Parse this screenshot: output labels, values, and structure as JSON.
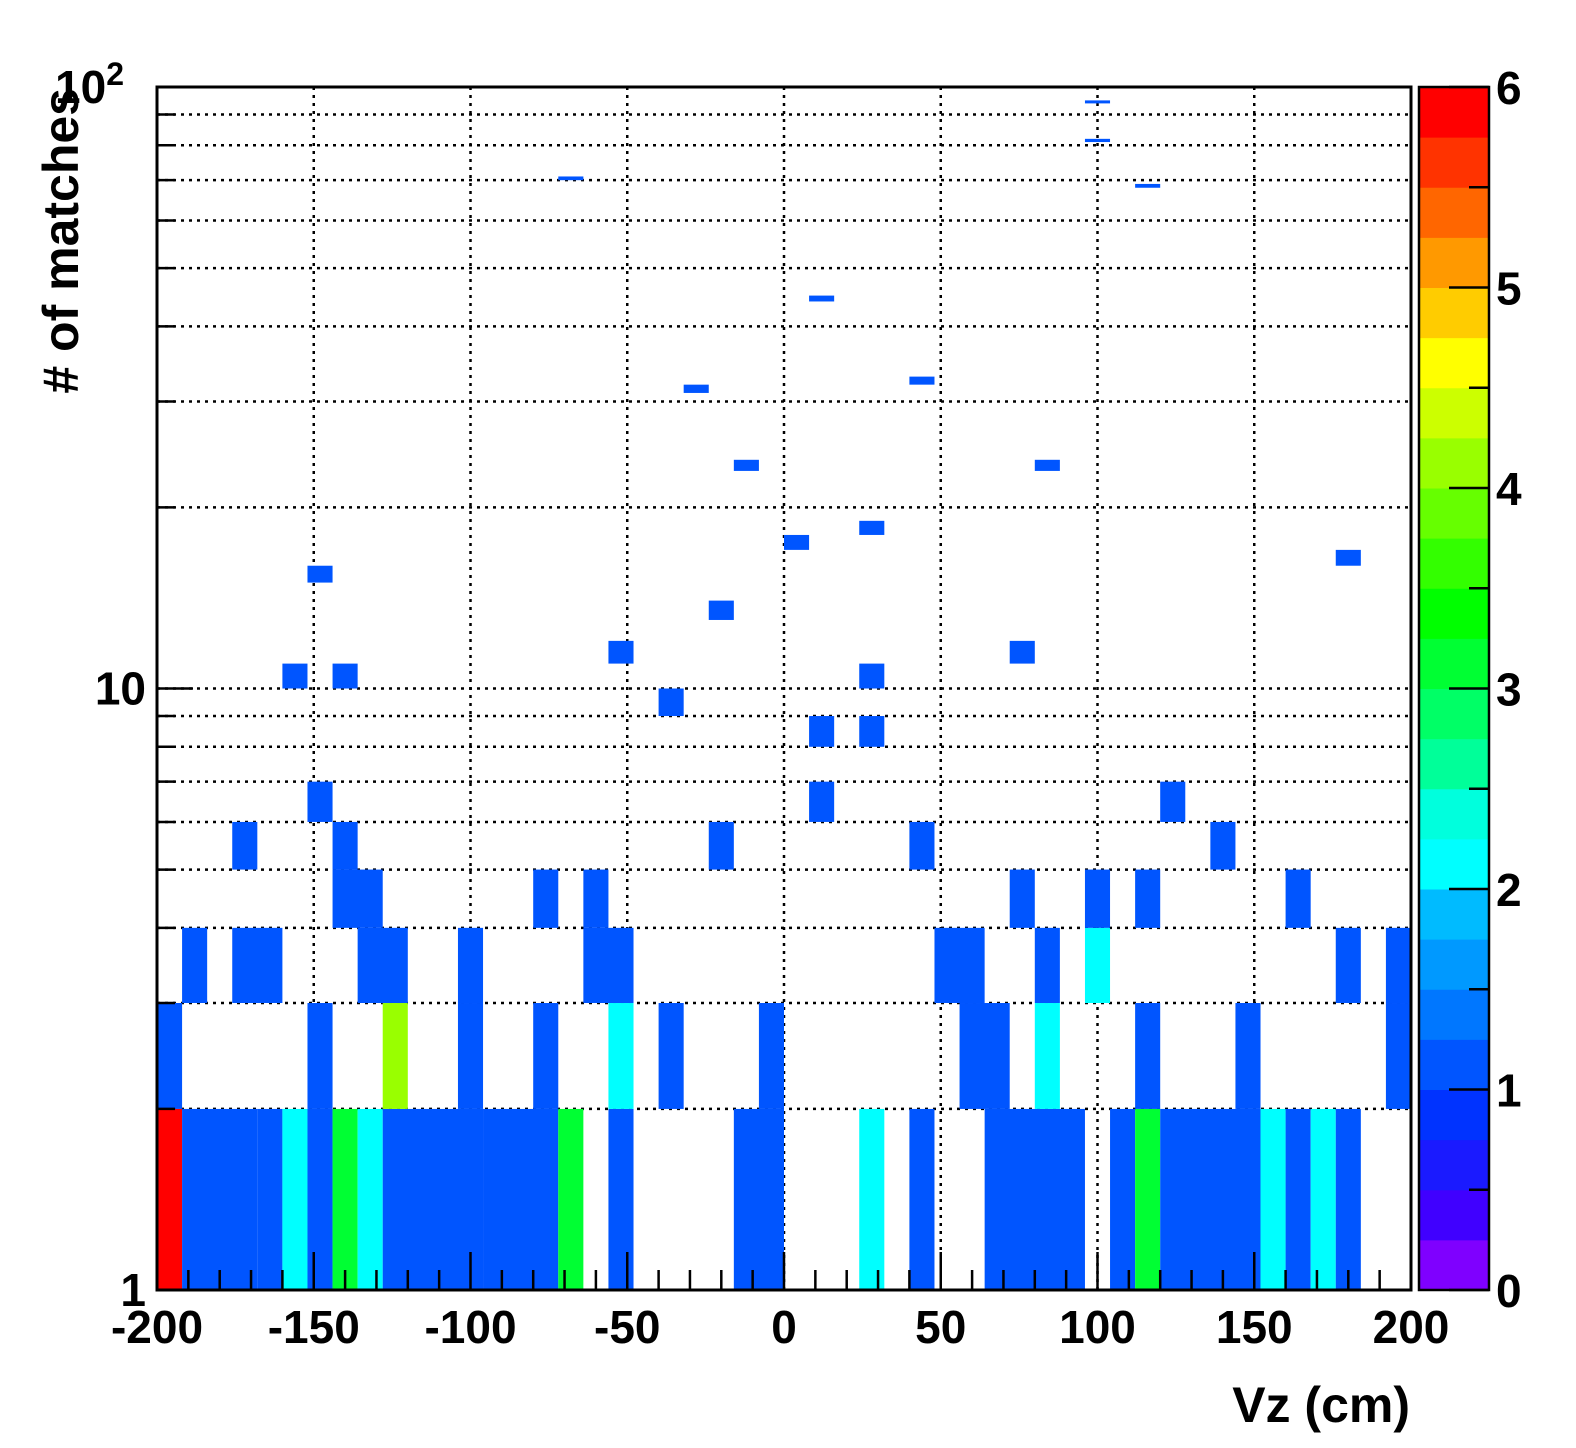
{
  "chart_data": {
    "type": "heatmap",
    "title": "",
    "xlabel": "Vz (cm)",
    "ylabel": "# of matches",
    "xlim": [
      -200,
      200
    ],
    "ylim": [
      1,
      100
    ],
    "y_scale": "log",
    "grid": true,
    "x_ticks": [
      "-200",
      "-150",
      "-100",
      "-50",
      "0",
      "50",
      "100",
      "150",
      "200"
    ],
    "y_ticks": [
      {
        "value": 1,
        "label": "1"
      },
      {
        "value": 10,
        "label": "10"
      },
      {
        "value": 100,
        "label": "10",
        "exponent": "2"
      }
    ],
    "z_range": [
      0,
      6
    ],
    "z_ticks": [
      "0",
      "1",
      "2",
      "3",
      "4",
      "5",
      "6"
    ],
    "colorbar_position": "right",
    "palette": [
      "#7f00ff",
      "#4000ff",
      "#1a1aff",
      "#0033ff",
      "#0055ff",
      "#0077ff",
      "#0099ff",
      "#00bbff",
      "#00ffff",
      "#00ffdd",
      "#00ff99",
      "#00ff66",
      "#00ff33",
      "#00ff00",
      "#33ff00",
      "#66ff00",
      "#99ff00",
      "#ccff00",
      "#ffff00",
      "#ffcc00",
      "#ff9900",
      "#ff6600",
      "#ff3300",
      "#ff0000"
    ],
    "bin_width_cm": 8,
    "cells": [
      {
        "x0": -200,
        "y0": 1,
        "y1": 2,
        "z": 6
      },
      {
        "x0": -192,
        "x1": -176,
        "y0": 1,
        "y1": 2,
        "z": 1
      },
      {
        "x0": -168,
        "y0": 1,
        "y1": 2,
        "z": 1
      },
      {
        "x0": -160,
        "y0": 1,
        "y1": 2,
        "z": 2
      },
      {
        "x0": -152,
        "y0": 1,
        "y1": 2,
        "z": 1
      },
      {
        "x0": -144,
        "y0": 1,
        "y1": 2,
        "z": 3
      },
      {
        "x0": -136,
        "y0": 1,
        "y1": 2,
        "z": 2
      },
      {
        "x0": -128,
        "x1": -104,
        "y0": 1,
        "y1": 2,
        "z": 1
      },
      {
        "x0": -96,
        "x1": -80,
        "y0": 1,
        "y1": 2,
        "z": 1
      },
      {
        "x0": -72,
        "y0": 1,
        "y1": 2,
        "z": 3
      },
      {
        "x0": -56,
        "y0": 1,
        "y1": 2,
        "z": 1
      },
      {
        "x0": -16,
        "x1": -8,
        "y0": 1,
        "y1": 2,
        "z": 1
      },
      {
        "x0": 24,
        "y0": 1,
        "y1": 2,
        "z": 2
      },
      {
        "x0": 40,
        "y0": 1,
        "y1": 2,
        "z": 1
      },
      {
        "x0": 64,
        "x1": 88,
        "y0": 1,
        "y1": 2,
        "z": 1
      },
      {
        "x0": 104,
        "y0": 1,
        "y1": 2,
        "z": 1
      },
      {
        "x0": 112,
        "y0": 1,
        "y1": 2,
        "z": 3
      },
      {
        "x0": 120,
        "x1": 144,
        "y0": 1,
        "y1": 2,
        "z": 1
      },
      {
        "x0": 152,
        "y0": 1,
        "y1": 2,
        "z": 2
      },
      {
        "x0": 160,
        "y0": 1,
        "y1": 2,
        "z": 1
      },
      {
        "x0": 168,
        "y0": 1,
        "y1": 2,
        "z": 2
      },
      {
        "x0": 176,
        "y0": 1,
        "y1": 2,
        "z": 1
      },
      {
        "x0": -200,
        "y0": 2,
        "y1": 3,
        "z": 1
      },
      {
        "x0": -152,
        "y0": 2,
        "y1": 3,
        "z": 1
      },
      {
        "x0": -128,
        "y0": 2,
        "y1": 3,
        "z": 4
      },
      {
        "x0": -104,
        "y0": 2,
        "y1": 3,
        "z": 1
      },
      {
        "x0": -80,
        "y0": 2,
        "y1": 3,
        "z": 1
      },
      {
        "x0": -56,
        "y0": 2,
        "y1": 3,
        "z": 2
      },
      {
        "x0": -40,
        "y0": 2,
        "y1": 3,
        "z": 1
      },
      {
        "x0": -8,
        "y0": 2,
        "y1": 3,
        "z": 1
      },
      {
        "x0": 56,
        "x1": 64,
        "y0": 2,
        "y1": 3,
        "z": 1
      },
      {
        "x0": 80,
        "y0": 2,
        "y1": 3,
        "z": 2
      },
      {
        "x0": 112,
        "y0": 2,
        "y1": 3,
        "z": 1
      },
      {
        "x0": 144,
        "y0": 2,
        "y1": 3,
        "z": 1
      },
      {
        "x0": 192,
        "y0": 2,
        "y1": 3,
        "z": 1
      },
      {
        "x0": -192,
        "y0": 3,
        "y1": 4,
        "z": 1
      },
      {
        "x0": -176,
        "x1": -168,
        "y0": 3,
        "y1": 4,
        "z": 1
      },
      {
        "x0": -136,
        "x1": -128,
        "y0": 3,
        "y1": 4,
        "z": 1
      },
      {
        "x0": -104,
        "y0": 3,
        "y1": 4,
        "z": 1
      },
      {
        "x0": -64,
        "x1": -56,
        "y0": 3,
        "y1": 4,
        "z": 1
      },
      {
        "x0": 48,
        "x1": 56,
        "y0": 3,
        "y1": 4,
        "z": 1
      },
      {
        "x0": 80,
        "y0": 3,
        "y1": 4,
        "z": 1
      },
      {
        "x0": 96,
        "y0": 3,
        "y1": 4,
        "z": 2
      },
      {
        "x0": 176,
        "y0": 3,
        "y1": 4,
        "z": 1
      },
      {
        "x0": 192,
        "y0": 3,
        "y1": 4,
        "z": 1
      },
      {
        "x0": -144,
        "x1": -136,
        "y0": 4,
        "y1": 5,
        "z": 1
      },
      {
        "x0": -80,
        "y0": 4,
        "y1": 5,
        "z": 1
      },
      {
        "x0": -64,
        "y0": 4,
        "y1": 5,
        "z": 1
      },
      {
        "x0": 72,
        "y0": 4,
        "y1": 5,
        "z": 1
      },
      {
        "x0": 96,
        "y0": 4,
        "y1": 5,
        "z": 1
      },
      {
        "x0": 112,
        "y0": 4,
        "y1": 5,
        "z": 1
      },
      {
        "x0": 160,
        "y0": 4,
        "y1": 5,
        "z": 1
      },
      {
        "x0": -176,
        "y0": 5,
        "y1": 6,
        "z": 1
      },
      {
        "x0": -144,
        "y0": 5,
        "y1": 6,
        "z": 1
      },
      {
        "x0": -24,
        "y0": 5,
        "y1": 6,
        "z": 1
      },
      {
        "x0": 40,
        "y0": 5,
        "y1": 6,
        "z": 1
      },
      {
        "x0": 136,
        "y0": 5,
        "y1": 6,
        "z": 1
      },
      {
        "x0": -152,
        "y0": 6,
        "y1": 7,
        "z": 1
      },
      {
        "x0": 8,
        "y0": 6,
        "y1": 7,
        "z": 1
      },
      {
        "x0": 120,
        "y0": 6,
        "y1": 7,
        "z": 1
      },
      {
        "x0": 8,
        "y0": 8,
        "y1": 9,
        "z": 1
      },
      {
        "x0": 24,
        "y0": 8,
        "y1": 9,
        "z": 1
      },
      {
        "x0": -40,
        "y0": 9,
        "y1": 10,
        "z": 1
      },
      {
        "x0": -160,
        "y0": 10,
        "y1": 11,
        "z": 1
      },
      {
        "x0": -144,
        "y0": 10,
        "y1": 11,
        "z": 1
      },
      {
        "x0": 24,
        "y0": 10,
        "y1": 11,
        "z": 1
      },
      {
        "x0": -56,
        "y0": 11,
        "y1": 12,
        "z": 1
      },
      {
        "x0": 72,
        "y0": 11,
        "y1": 12,
        "z": 1
      },
      {
        "x0": -24,
        "y0": 13,
        "y1": 14,
        "z": 1
      },
      {
        "x0": -152,
        "y0": 15,
        "y1": 16,
        "z": 1
      },
      {
        "x0": 176,
        "y0": 16,
        "y1": 17,
        "z": 1
      },
      {
        "x0": 0,
        "y0": 17,
        "y1": 18,
        "z": 1
      },
      {
        "x0": 24,
        "y0": 18,
        "y1": 19,
        "z": 1
      },
      {
        "x0": -16,
        "y0": 23,
        "y1": 24,
        "z": 1
      },
      {
        "x0": 80,
        "y0": 23,
        "y1": 24,
        "z": 1
      },
      {
        "x0": -32,
        "y0": 31,
        "y1": 32,
        "z": 1
      },
      {
        "x0": 40,
        "y0": 32,
        "y1": 33,
        "z": 1
      },
      {
        "x0": 8,
        "y0": 44,
        "y1": 45,
        "z": 1
      },
      {
        "x0": -72,
        "y0": 70,
        "y1": 71,
        "z": 1
      },
      {
        "x0": 112,
        "y0": 68,
        "y1": 69,
        "z": 1
      },
      {
        "x0": 96,
        "y0": 81,
        "y1": 82,
        "z": 1
      },
      {
        "x0": 96,
        "y0": 94,
        "y1": 95,
        "z": 1
      }
    ]
  }
}
